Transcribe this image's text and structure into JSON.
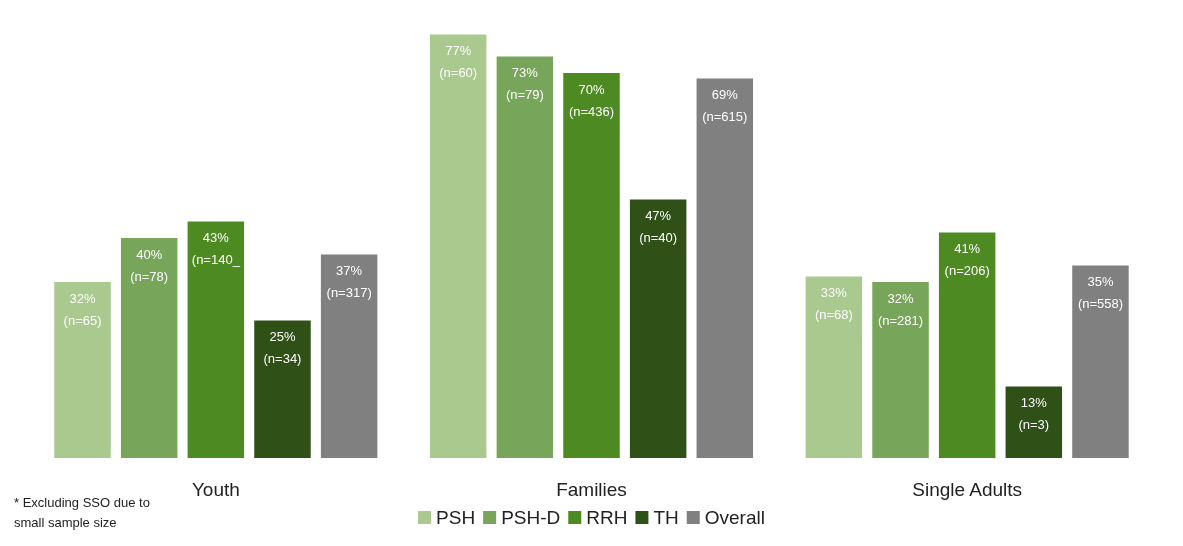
{
  "chart_data": {
    "type": "bar",
    "categories": [
      "Youth",
      "Families",
      "Single Adults"
    ],
    "series": [
      {
        "name": "PSH",
        "color": "#a9c98f",
        "values": [
          32,
          77,
          33
        ],
        "value_labels": [
          "32%\n(n=65)",
          "77%\n(n=60)",
          "33%\n(n=68)"
        ]
      },
      {
        "name": "PSH-D",
        "color": "#77a55a",
        "values": [
          40,
          73,
          32
        ],
        "value_labels": [
          "40%\n(n=78)",
          "73%\n(n=79)",
          "32%\n(n=281)"
        ]
      },
      {
        "name": "RRH",
        "color": "#4e8a22",
        "values": [
          43,
          70,
          41
        ],
        "value_labels": [
          "43%\n(n=140_",
          "70%\n(n=436)",
          "41%\n(n=206)"
        ]
      },
      {
        "name": "TH",
        "color": "#2f5016",
        "values": [
          25,
          47,
          13
        ],
        "value_labels": [
          "25%\n(n=34)",
          "47%\n(n=40)",
          "13%\n(n=3)"
        ]
      },
      {
        "name": "Overall",
        "color": "#808080",
        "values": [
          37,
          69,
          35
        ],
        "value_labels": [
          "37%\n(n=317)",
          "69%\n(n=615)",
          "35%\n(n=558)"
        ]
      }
    ],
    "annotations": [
      "* Excluding SSO due to small sample size"
    ],
    "legend": "bottom"
  }
}
